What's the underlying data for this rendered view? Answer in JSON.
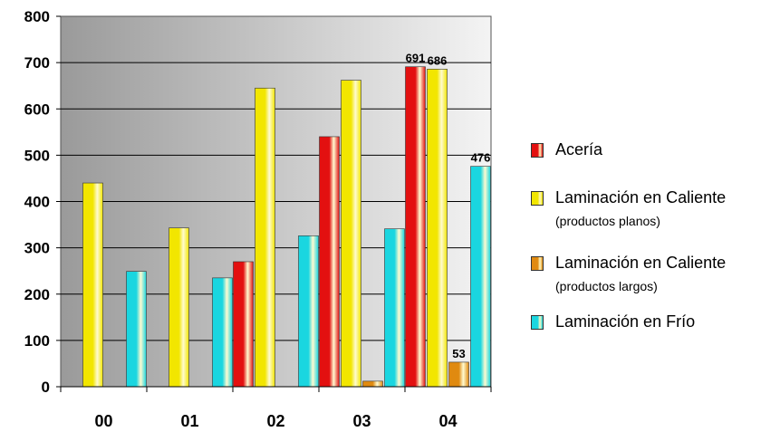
{
  "chart_data": {
    "type": "bar",
    "categories": [
      "00",
      "01",
      "02",
      "03",
      "04"
    ],
    "ylim": [
      0,
      800
    ],
    "yticks": [
      "0",
      "100",
      "200",
      "300",
      "400",
      "500",
      "600",
      "700",
      "800"
    ],
    "grid": true,
    "legend_position": "right",
    "series": [
      {
        "name": "Acería",
        "color": "#e31010",
        "values": [
          0,
          0,
          270,
          540,
          691
        ],
        "labels": [
          "",
          "",
          "",
          "",
          "691"
        ]
      },
      {
        "name": "Laminación en Caliente",
        "subtitle": "(productos planos)",
        "color": "#f2e600",
        "values": [
          440,
          343,
          645,
          662,
          686
        ],
        "labels": [
          "",
          "",
          "",
          "",
          "686"
        ]
      },
      {
        "name": "Laminación en Caliente",
        "subtitle": "(productos largos)",
        "color": "#e08a10",
        "values": [
          0,
          0,
          0,
          12,
          53
        ],
        "labels": [
          "",
          "",
          "",
          "",
          "53"
        ]
      },
      {
        "name": "Laminación en Frío",
        "color": "#1ad6e0",
        "values": [
          249,
          235,
          326,
          341,
          476
        ],
        "labels": [
          "",
          "",
          "",
          "",
          "476"
        ]
      }
    ]
  }
}
